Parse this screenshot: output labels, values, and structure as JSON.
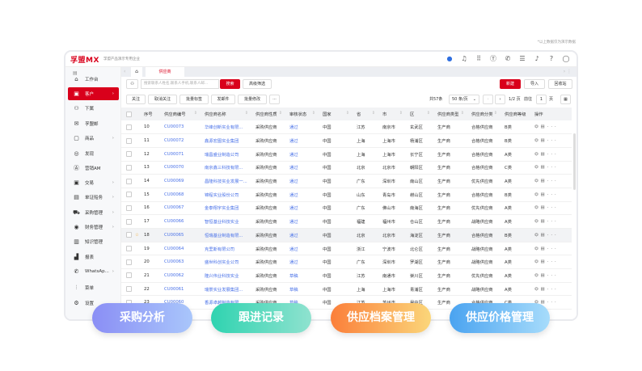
{
  "note": "*以上数据仅为演示数据",
  "header": {
    "logo": "孚盟MX",
    "org": "孚盟产品演示专用企业",
    "icons": [
      "chat-bubble-icon",
      "headset-icon",
      "apps-grid-icon",
      "t-circle-icon",
      "whatsapp-icon",
      "list-check-icon",
      "bell-icon",
      "help-icon",
      "avatar-icon"
    ]
  },
  "sidebar": {
    "items": [
      {
        "label": "工作台",
        "icon": "home-icon"
      },
      {
        "label": "客户",
        "icon": "customer-icon",
        "arrow": true,
        "active": true
      },
      {
        "label": "下属",
        "icon": "subordinate-icon"
      },
      {
        "label": "孚盟邮",
        "icon": "mail-icon"
      },
      {
        "label": "商品",
        "icon": "product-icon",
        "arrow": true
      },
      {
        "label": "发现",
        "icon": "compass-icon"
      },
      {
        "label": "营销AM",
        "icon": "marketing-icon"
      },
      {
        "label": "交易",
        "icon": "trade-icon",
        "arrow": true
      },
      {
        "label": "单证船务",
        "icon": "document-icon",
        "arrow": true
      },
      {
        "label": "采购管理",
        "icon": "truck-icon",
        "arrow": true
      },
      {
        "label": "财务管理",
        "icon": "finance-icon",
        "arrow": true
      },
      {
        "label": "知识管理",
        "icon": "book-icon"
      },
      {
        "label": "报表",
        "icon": "chart-icon"
      },
      {
        "label": "WhatsAp...",
        "icon": "whatsapp-icon",
        "arrow": true
      },
      {
        "label": "菜单",
        "icon": "sliders-icon"
      },
      {
        "label": "设置",
        "icon": "settings-icon"
      }
    ]
  },
  "tabs": {
    "active": "供应商"
  },
  "search": {
    "placeholder": "搜索联系人姓名,联系人手机,联系人邮...",
    "search_btn": "搜索",
    "advanced": "高级筛选"
  },
  "actions": {
    "create": "新建",
    "import": "导入",
    "recycle": "回收站"
  },
  "toolbar": {
    "follow": "关注",
    "unfollow": "取消关注",
    "batch_tag": "批量标签",
    "send_mail": "发邮件",
    "batch_edit": "批量修改",
    "more": "···"
  },
  "pagination": {
    "total": "共57条",
    "page_size": "50 条/页",
    "page": "1/2 页",
    "goto": "前往",
    "goto_value": "1",
    "page_unit": "页"
  },
  "table": {
    "columns": [
      "序号",
      "供应商编号",
      "供应商名称",
      "供应商性质",
      "审核状态",
      "国家",
      "省",
      "市",
      "区",
      "供应商类型",
      "供应商分类",
      "供应商等级",
      "操作"
    ],
    "rows": [
      [
        "10",
        "CU00073",
        "华峰创新实业有限...",
        "采购供应商",
        "通过",
        "中国",
        "江苏",
        "南京市",
        "玄武区",
        "生产商",
        "合格供应商",
        "B类"
      ],
      [
        "11",
        "CU00072",
        "鑫源宏图实业集团",
        "采购供应商",
        "通过",
        "中国",
        "上海",
        "上海市",
        "杨浦区",
        "生产商",
        "合格供应商",
        "B类"
      ],
      [
        "12",
        "CU00071",
        "瑞昌盛业制造公司",
        "采购供应商",
        "通过",
        "中国",
        "上海",
        "上海市",
        "长宁区",
        "生产商",
        "合格供应商",
        "A类"
      ],
      [
        "13",
        "CU00070",
        "南京鑫三科技有限...",
        "采购供应商",
        "通过",
        "中国",
        "北京",
        "北京市",
        "朝阳区",
        "生产商",
        "合格供应商",
        "C类"
      ],
      [
        "14",
        "CU00069",
        "昌隆科技实业发展一...",
        "采购供应商",
        "通过",
        "中国",
        "广东",
        "深圳市",
        "南山区",
        "生产商",
        "优先供应商",
        "A类"
      ],
      [
        "15",
        "CU00068",
        "锦程实业股份公司",
        "采购供应商",
        "通过",
        "中国",
        "山东",
        "青岛市",
        "崂山区",
        "生产商",
        "合格供应商",
        "B类"
      ],
      [
        "16",
        "CU00067",
        "金泰翔宇实业集团",
        "采购供应商",
        "通过",
        "中国",
        "广东",
        "佛山市",
        "南海区",
        "生产商",
        "优先供应商",
        "A类"
      ],
      [
        "17",
        "CU00066",
        "智恒基业科技实业",
        "采购供应商",
        "通过",
        "中国",
        "福建",
        "福州市",
        "仓山区",
        "生产商",
        "战略供应商",
        "A类"
      ],
      [
        "18",
        "CU00065",
        "恒瑞基业制造有限...",
        "采购供应商",
        "通过",
        "中国",
        "北京",
        "北京市",
        "海淀区",
        "生产商",
        "合格供应商",
        "B类"
      ],
      [
        "19",
        "CU00064",
        "克里斯有限公司",
        "采购供应商",
        "通过",
        "中国",
        "浙江",
        "宁波市",
        "北仑区",
        "生产商",
        "战略供应商",
        "A类"
      ],
      [
        "20",
        "CU00063",
        "盛世科创实业公司",
        "采购供应商",
        "通过",
        "中国",
        "广东",
        "深圳市",
        "罗湖区",
        "生产商",
        "战略供应商",
        "A类"
      ],
      [
        "21",
        "CU00062",
        "隆兴伟业科技实业",
        "采购供应商",
        "草稿",
        "中国",
        "江苏",
        "南通市",
        "崇川区",
        "生产商",
        "优先供应商",
        "A类"
      ],
      [
        "22",
        "CU00061",
        "瑞景实业发展集团...",
        "采购供应商",
        "草稿",
        "中国",
        "上海",
        "上海市",
        "青浦区",
        "生产商",
        "战略供应商",
        "A类"
      ],
      [
        "23",
        "CU00060",
        "香源卓越制造有限...",
        "采购供应商",
        "草稿",
        "中国",
        "江苏",
        "苏州市",
        "吴中区",
        "生产商",
        "合格供应商",
        "C类"
      ]
    ],
    "highlighted_row": "18"
  },
  "features": [
    {
      "label": "采购分析",
      "from": "#8a8ef5",
      "to": "#a9c6fb"
    },
    {
      "label": "跟进记录",
      "from": "#2fd3b0",
      "to": "#8fe2cf"
    },
    {
      "label": "供应档案管理",
      "from": "#fb7f3a",
      "to": "#fbd67a"
    },
    {
      "label": "供应价格管理",
      "from": "#4aa3f0",
      "to": "#a7dcfb"
    }
  ],
  "colors": {
    "brand": "#d9001b",
    "link": "#4a72e8"
  }
}
